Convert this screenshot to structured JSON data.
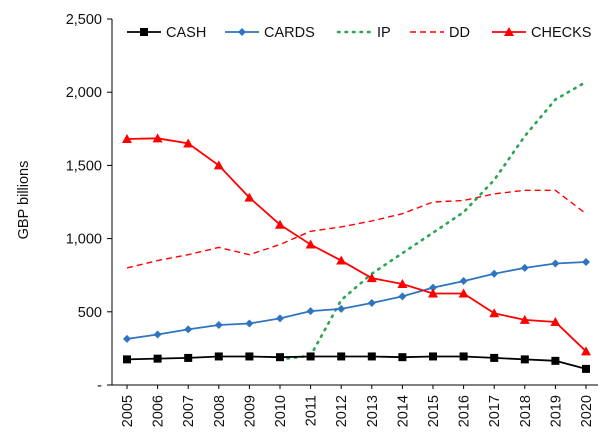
{
  "chart_data": {
    "type": "line",
    "ylabel": "GBP billions",
    "xlabel": "",
    "ylim": [
      0,
      2500
    ],
    "y_ticks": [
      {
        "value": 0,
        "label": "-"
      },
      {
        "value": 500,
        "label": "500"
      },
      {
        "value": 1000,
        "label": "1,000"
      },
      {
        "value": 1500,
        "label": "1,500"
      },
      {
        "value": 2000,
        "label": "2,000"
      },
      {
        "value": 2500,
        "label": "2,500"
      }
    ],
    "x": [
      "2005",
      "2006",
      "2007",
      "2008",
      "2009",
      "2010",
      "2011",
      "2012",
      "2013",
      "2014",
      "2015",
      "2016",
      "2017",
      "2018",
      "2019",
      "2020"
    ],
    "grid": false,
    "legend_position": "top",
    "series": [
      {
        "name": "CASH",
        "color": "#000000",
        "style": "solid",
        "marker": "square",
        "values": [
          175,
          180,
          185,
          195,
          195,
          190,
          195,
          195,
          195,
          190,
          195,
          195,
          185,
          175,
          165,
          110
        ]
      },
      {
        "name": "CARDS",
        "color": "#2e75c0",
        "style": "solid",
        "marker": "diamond",
        "values": [
          315,
          345,
          380,
          410,
          420,
          455,
          505,
          520,
          560,
          605,
          665,
          710,
          760,
          800,
          830,
          840
        ]
      },
      {
        "name": "IP",
        "color": "#2aa64f",
        "style": "dotted",
        "marker": "none",
        "values": [
          null,
          null,
          null,
          null,
          null,
          175,
          200,
          580,
          760,
          900,
          1040,
          1180,
          1400,
          1700,
          1950,
          2070
        ]
      },
      {
        "name": "DD",
        "color": "#ff0000",
        "style": "dashed",
        "marker": "none",
        "values": [
          800,
          850,
          890,
          940,
          890,
          960,
          1050,
          1080,
          1120,
          1170,
          1250,
          1260,
          1305,
          1330,
          1330,
          1170
        ]
      },
      {
        "name": "CHECKS",
        "color": "#ff0000",
        "style": "solid",
        "marker": "triangle",
        "values": [
          1680,
          1685,
          1650,
          1500,
          1280,
          1095,
          960,
          850,
          730,
          690,
          625,
          625,
          490,
          445,
          430,
          230
        ]
      }
    ]
  }
}
